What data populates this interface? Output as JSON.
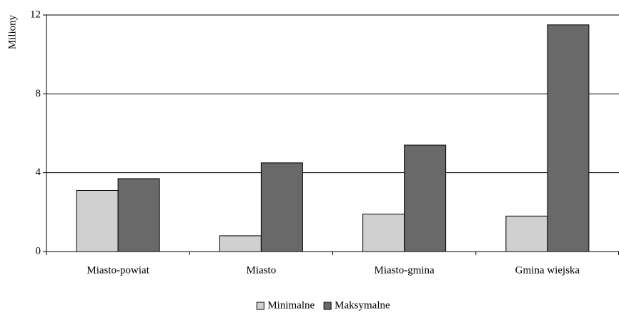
{
  "chart_data": {
    "type": "bar",
    "y_label": "Miliony",
    "categories": [
      "Miasto-powiat",
      "Miasto",
      "Miasto-gmina",
      "Gmina wiejska"
    ],
    "series": [
      {
        "name": "Minimalne",
        "color": "#d0d0d0",
        "values": [
          3.1,
          0.8,
          1.9,
          1.8
        ]
      },
      {
        "name": "Maksymalne",
        "color": "#696969",
        "values": [
          3.7,
          4.5,
          5.4,
          11.5
        ]
      }
    ],
    "ylim": [
      0,
      12
    ],
    "yticks": [
      0,
      4,
      8,
      12
    ],
    "grid": true,
    "legend": "bottom"
  }
}
